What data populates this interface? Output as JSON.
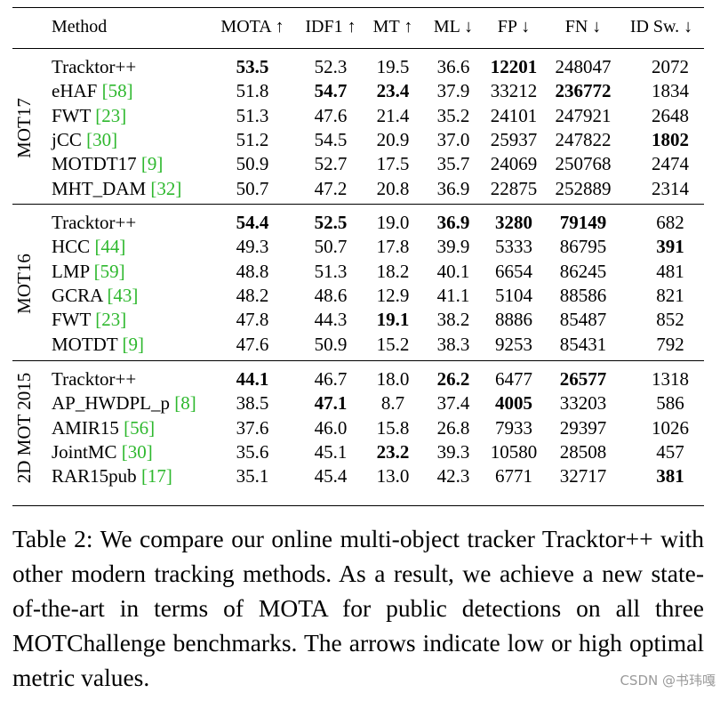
{
  "table": {
    "headers": {
      "method": "Method",
      "mota": "MOTA ↑",
      "idf1": "IDF1 ↑",
      "mt": "MT ↑",
      "ml": "ML ↓",
      "fp": "FP ↓",
      "fn": "FN ↓",
      "idsw": "ID Sw. ↓"
    },
    "groups": [
      {
        "label": "MOT17",
        "rows": [
          {
            "name": "Tracktor++",
            "ref": "",
            "vals": [
              "53.5",
              "52.3",
              "19.5",
              "36.6",
              "12201",
              "248047",
              "2072"
            ],
            "bold": [
              true,
              false,
              false,
              false,
              true,
              false,
              false
            ]
          },
          {
            "name": "eHAF ",
            "ref": "[58]",
            "vals": [
              "51.8",
              "54.7",
              "23.4",
              "37.9",
              "33212",
              "236772",
              "1834"
            ],
            "bold": [
              false,
              true,
              true,
              false,
              false,
              true,
              false
            ]
          },
          {
            "name": "FWT ",
            "ref": "[23]",
            "vals": [
              "51.3",
              "47.6",
              "21.4",
              "35.2",
              "24101",
              "247921",
              "2648"
            ],
            "bold": [
              false,
              false,
              false,
              false,
              false,
              false,
              false
            ]
          },
          {
            "name": "jCC ",
            "ref": "[30]",
            "vals": [
              "51.2",
              "54.5",
              "20.9",
              "37.0",
              "25937",
              "247822",
              "1802"
            ],
            "bold": [
              false,
              false,
              false,
              false,
              false,
              false,
              true
            ]
          },
          {
            "name": "MOTDT17 ",
            "ref": "[9]",
            "vals": [
              "50.9",
              "52.7",
              "17.5",
              "35.7",
              "24069",
              "250768",
              "2474"
            ],
            "bold": [
              false,
              false,
              false,
              false,
              false,
              false,
              false
            ]
          },
          {
            "name": "MHT_DAM ",
            "ref": "[32]",
            "vals": [
              "50.7",
              "47.2",
              "20.8",
              "36.9",
              "22875",
              "252889",
              "2314"
            ],
            "bold": [
              false,
              false,
              false,
              false,
              false,
              false,
              false
            ]
          }
        ]
      },
      {
        "label": "MOT16",
        "rows": [
          {
            "name": "Tracktor++",
            "ref": "",
            "vals": [
              "54.4",
              "52.5",
              "19.0",
              "36.9",
              "3280",
              "79149",
              "682"
            ],
            "bold": [
              true,
              true,
              false,
              true,
              true,
              true,
              false
            ]
          },
          {
            "name": "HCC ",
            "ref": "[44]",
            "vals": [
              "49.3",
              "50.7",
              "17.8",
              "39.9",
              "5333",
              "86795",
              "391"
            ],
            "bold": [
              false,
              false,
              false,
              false,
              false,
              false,
              true
            ]
          },
          {
            "name": "LMP ",
            "ref": "[59]",
            "vals": [
              "48.8",
              "51.3",
              "18.2",
              "40.1",
              "6654",
              "86245",
              "481"
            ],
            "bold": [
              false,
              false,
              false,
              false,
              false,
              false,
              false
            ]
          },
          {
            "name": "GCRA ",
            "ref": "[43]",
            "vals": [
              "48.2",
              "48.6",
              "12.9",
              "41.1",
              "5104",
              "88586",
              "821"
            ],
            "bold": [
              false,
              false,
              false,
              false,
              false,
              false,
              false
            ]
          },
          {
            "name": "FWT ",
            "ref": "[23]",
            "vals": [
              "47.8",
              "44.3",
              "19.1",
              "38.2",
              "8886",
              "85487",
              "852"
            ],
            "bold": [
              false,
              false,
              true,
              false,
              false,
              false,
              false
            ]
          },
          {
            "name": "MOTDT ",
            "ref": "[9]",
            "vals": [
              "47.6",
              "50.9",
              "15.2",
              "38.3",
              "9253",
              "85431",
              "792"
            ],
            "bold": [
              false,
              false,
              false,
              false,
              false,
              false,
              false
            ]
          }
        ]
      },
      {
        "label": "2D MOT 2015",
        "rows": [
          {
            "name": "Tracktor++",
            "ref": "",
            "vals": [
              "44.1",
              "46.7",
              "18.0",
              "26.2",
              "6477",
              "26577",
              "1318"
            ],
            "bold": [
              true,
              false,
              false,
              true,
              false,
              true,
              false
            ]
          },
          {
            "name": "AP_HWDPL_p ",
            "ref": "[8]",
            "vals": [
              "38.5",
              "47.1",
              "8.7",
              "37.4",
              "4005",
              "33203",
              "586"
            ],
            "bold": [
              false,
              true,
              false,
              false,
              true,
              false,
              false
            ]
          },
          {
            "name": "AMIR15 ",
            "ref": "[56]",
            "vals": [
              "37.6",
              "46.0",
              "15.8",
              "26.8",
              "7933",
              "29397",
              "1026"
            ],
            "bold": [
              false,
              false,
              false,
              false,
              false,
              false,
              false
            ]
          },
          {
            "name": "JointMC ",
            "ref": "[30]",
            "vals": [
              "35.6",
              "45.1",
              "23.2",
              "39.3",
              "10580",
              "28508",
              "457"
            ],
            "bold": [
              false,
              false,
              true,
              false,
              false,
              false,
              false
            ]
          },
          {
            "name": "RAR15pub ",
            "ref": "[17]",
            "vals": [
              "35.1",
              "45.4",
              "13.0",
              "42.3",
              "6771",
              "32717",
              "381"
            ],
            "bold": [
              false,
              false,
              false,
              false,
              false,
              false,
              true
            ]
          }
        ]
      }
    ]
  },
  "caption": "Table 2: We compare our online multi-object tracker Tracktor++ with other modern tracking methods. As a result, we achieve a new state-of-the-art in terms of MOTA for public detections on all three MOTChallenge benchmarks. The arrows indicate low or high optimal metric values.",
  "watermark": "CSDN @书玮嘎",
  "colors": {
    "reference": "#2eb82e",
    "text": "#000000",
    "watermark": "#9a9a9a"
  }
}
